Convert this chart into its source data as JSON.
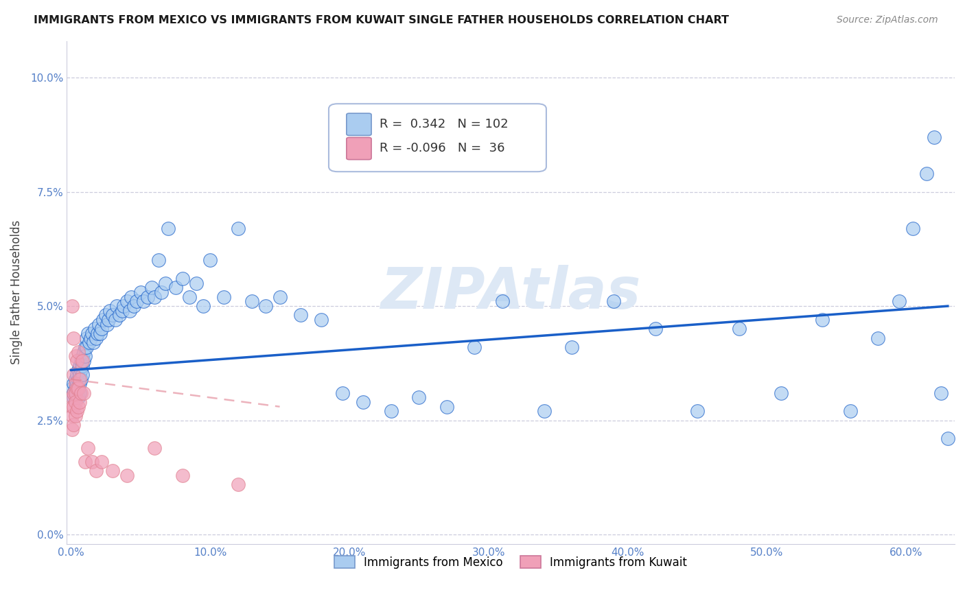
{
  "title": "IMMIGRANTS FROM MEXICO VS IMMIGRANTS FROM KUWAIT SINGLE FATHER HOUSEHOLDS CORRELATION CHART",
  "source": "Source: ZipAtlas.com",
  "ylabel": "Single Father Households",
  "xlim": [
    -0.003,
    0.635
  ],
  "ylim": [
    -0.002,
    0.108
  ],
  "r_mexico": 0.342,
  "n_mexico": 102,
  "r_kuwait": -0.096,
  "n_kuwait": 36,
  "legend_label_mexico": "Immigrants from Mexico",
  "legend_label_kuwait": "Immigrants from Kuwait",
  "color_mexico": "#aaccf0",
  "color_kuwait": "#f0a0b8",
  "line_color_mexico": "#1a5fc8",
  "line_color_kuwait": "#e08090",
  "watermark": "ZIPAtlas",
  "background_color": "#ffffff",
  "grid_color": "#ccccdd",
  "x_tick_positions": [
    0.0,
    0.1,
    0.2,
    0.3,
    0.4,
    0.5,
    0.6
  ],
  "x_tick_labels": [
    "0.0%",
    "10.0%",
    "20.0%",
    "30.0%",
    "40.0%",
    "50.0%",
    "60.0%"
  ],
  "y_tick_positions": [
    0.0,
    0.025,
    0.05,
    0.075,
    0.1
  ],
  "y_tick_labels": [
    "0.0%",
    "2.5%",
    "5.0%",
    "7.5%",
    "10.0%"
  ],
  "mexico_x": [
    0.001,
    0.002,
    0.002,
    0.002,
    0.003,
    0.003,
    0.003,
    0.004,
    0.004,
    0.004,
    0.005,
    0.005,
    0.005,
    0.005,
    0.006,
    0.006,
    0.006,
    0.006,
    0.007,
    0.007,
    0.007,
    0.008,
    0.008,
    0.008,
    0.009,
    0.009,
    0.01,
    0.01,
    0.011,
    0.011,
    0.012,
    0.013,
    0.014,
    0.015,
    0.016,
    0.017,
    0.018,
    0.019,
    0.02,
    0.021,
    0.022,
    0.023,
    0.025,
    0.026,
    0.027,
    0.028,
    0.03,
    0.032,
    0.033,
    0.035,
    0.037,
    0.038,
    0.04,
    0.042,
    0.043,
    0.045,
    0.047,
    0.05,
    0.052,
    0.055,
    0.058,
    0.06,
    0.063,
    0.065,
    0.068,
    0.07,
    0.075,
    0.08,
    0.085,
    0.09,
    0.095,
    0.1,
    0.11,
    0.12,
    0.13,
    0.14,
    0.15,
    0.165,
    0.18,
    0.195,
    0.21,
    0.23,
    0.25,
    0.27,
    0.29,
    0.31,
    0.34,
    0.36,
    0.39,
    0.42,
    0.45,
    0.48,
    0.51,
    0.54,
    0.56,
    0.58,
    0.595,
    0.605,
    0.615,
    0.62,
    0.625,
    0.63
  ],
  "mexico_y": [
    0.032,
    0.033,
    0.031,
    0.03,
    0.034,
    0.032,
    0.03,
    0.035,
    0.033,
    0.031,
    0.036,
    0.034,
    0.032,
    0.03,
    0.037,
    0.035,
    0.033,
    0.031,
    0.038,
    0.036,
    0.034,
    0.039,
    0.037,
    0.035,
    0.04,
    0.038,
    0.041,
    0.039,
    0.043,
    0.041,
    0.044,
    0.042,
    0.043,
    0.044,
    0.042,
    0.045,
    0.043,
    0.044,
    0.046,
    0.044,
    0.045,
    0.047,
    0.048,
    0.046,
    0.047,
    0.049,
    0.048,
    0.047,
    0.05,
    0.048,
    0.049,
    0.05,
    0.051,
    0.049,
    0.052,
    0.05,
    0.051,
    0.053,
    0.051,
    0.052,
    0.054,
    0.052,
    0.06,
    0.053,
    0.055,
    0.067,
    0.054,
    0.056,
    0.052,
    0.055,
    0.05,
    0.06,
    0.052,
    0.067,
    0.051,
    0.05,
    0.052,
    0.048,
    0.047,
    0.031,
    0.029,
    0.027,
    0.03,
    0.028,
    0.041,
    0.051,
    0.027,
    0.041,
    0.051,
    0.045,
    0.027,
    0.045,
    0.031,
    0.047,
    0.027,
    0.043,
    0.051,
    0.067,
    0.079,
    0.087,
    0.031,
    0.021
  ],
  "kuwait_x": [
    0.001,
    0.001,
    0.001,
    0.001,
    0.001,
    0.002,
    0.002,
    0.002,
    0.002,
    0.002,
    0.003,
    0.003,
    0.003,
    0.003,
    0.003,
    0.004,
    0.004,
    0.004,
    0.005,
    0.005,
    0.005,
    0.006,
    0.006,
    0.007,
    0.008,
    0.009,
    0.01,
    0.012,
    0.015,
    0.018,
    0.022,
    0.03,
    0.04,
    0.06,
    0.08,
    0.12
  ],
  "kuwait_y": [
    0.05,
    0.03,
    0.028,
    0.026,
    0.023,
    0.043,
    0.035,
    0.031,
    0.028,
    0.024,
    0.039,
    0.033,
    0.031,
    0.029,
    0.026,
    0.038,
    0.032,
    0.027,
    0.04,
    0.032,
    0.028,
    0.034,
    0.029,
    0.031,
    0.038,
    0.031,
    0.016,
    0.019,
    0.016,
    0.014,
    0.016,
    0.014,
    0.013,
    0.019,
    0.013,
    0.011
  ],
  "line_mexico_x0": 0.0,
  "line_mexico_x1": 0.63,
  "line_mexico_y0": 0.036,
  "line_mexico_y1": 0.05,
  "line_kuwait_x0": 0.0,
  "line_kuwait_x1": 0.15,
  "line_kuwait_y0": 0.034,
  "line_kuwait_y1": 0.028
}
